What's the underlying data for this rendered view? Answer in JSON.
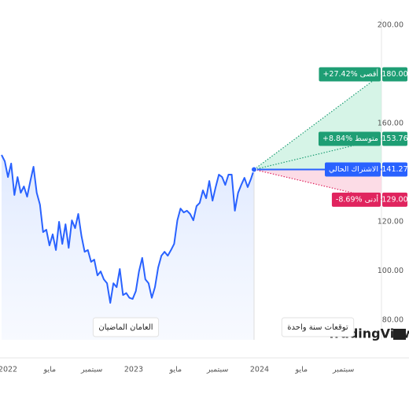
{
  "chart_data": {
    "type": "forecast-line",
    "x_labels": [
      "2022",
      "مايو",
      "سبتمبر",
      "2023",
      "مايو",
      "سبتمبر",
      "2024",
      "مايو",
      "سبتمبر"
    ],
    "series": [
      {
        "name": "العامان الماضيان",
        "color": "#2962ff",
        "values": [
          147.2,
          144.6,
          138.2,
          143.7,
          130.9,
          138.2,
          131.8,
          134.4,
          130.2,
          136.6,
          142.4,
          131.8,
          127.0,
          115.8,
          116.8,
          110.4,
          114.9,
          108.5,
          120.0,
          111.0,
          119.0,
          109.4,
          120.6,
          117.4,
          123.2,
          114.2,
          107.8,
          108.5,
          103.7,
          104.6,
          98.2,
          99.8,
          96.6,
          95.0,
          87.0,
          95.0,
          93.4,
          100.8,
          90.2,
          91.0,
          89.1,
          88.6,
          91.8,
          99.8,
          105.3,
          96.6,
          95.0,
          89.1,
          93.4,
          101.4,
          106.2,
          107.8,
          106.2,
          108.5,
          111.0,
          120.6,
          125.4,
          123.8,
          124.5,
          123.2,
          120.6,
          126.4,
          127.7,
          132.8,
          129.6,
          136.6,
          128.6,
          134.1,
          139.2,
          138.2,
          135.0,
          139.2,
          139.2,
          124.5,
          131.8,
          135.0,
          137.9,
          134.1,
          137.3,
          141.27
        ]
      }
    ],
    "forecast": {
      "title": "توقعات سنة واحدة",
      "current": {
        "label": "الاشتراك الحالي",
        "value": 141.27,
        "value_label": "141.27",
        "color": "#2962ff"
      },
      "high": {
        "label": "+27.42% أقصى",
        "value": 180,
        "value_label": "180.00",
        "color": "#1e9e74"
      },
      "average": {
        "label": "+8.84% متوسط",
        "value": 153.76,
        "value_label": "153.76",
        "color": "#1e9e74"
      },
      "low": {
        "label": "-8.69% أدنى",
        "value": 129,
        "value_label": "129.00",
        "color": "#e0245e"
      }
    },
    "watermark": "TradingView",
    "ylim": [
      72,
      200
    ],
    "yticks": [
      {
        "value": 200,
        "label": "200.00"
      },
      {
        "value": 160,
        "label": "160.00"
      },
      {
        "value": 120,
        "label": "120.00"
      },
      {
        "value": 100,
        "label": "100.00"
      },
      {
        "value": 80,
        "label": "80.00"
      }
    ]
  }
}
